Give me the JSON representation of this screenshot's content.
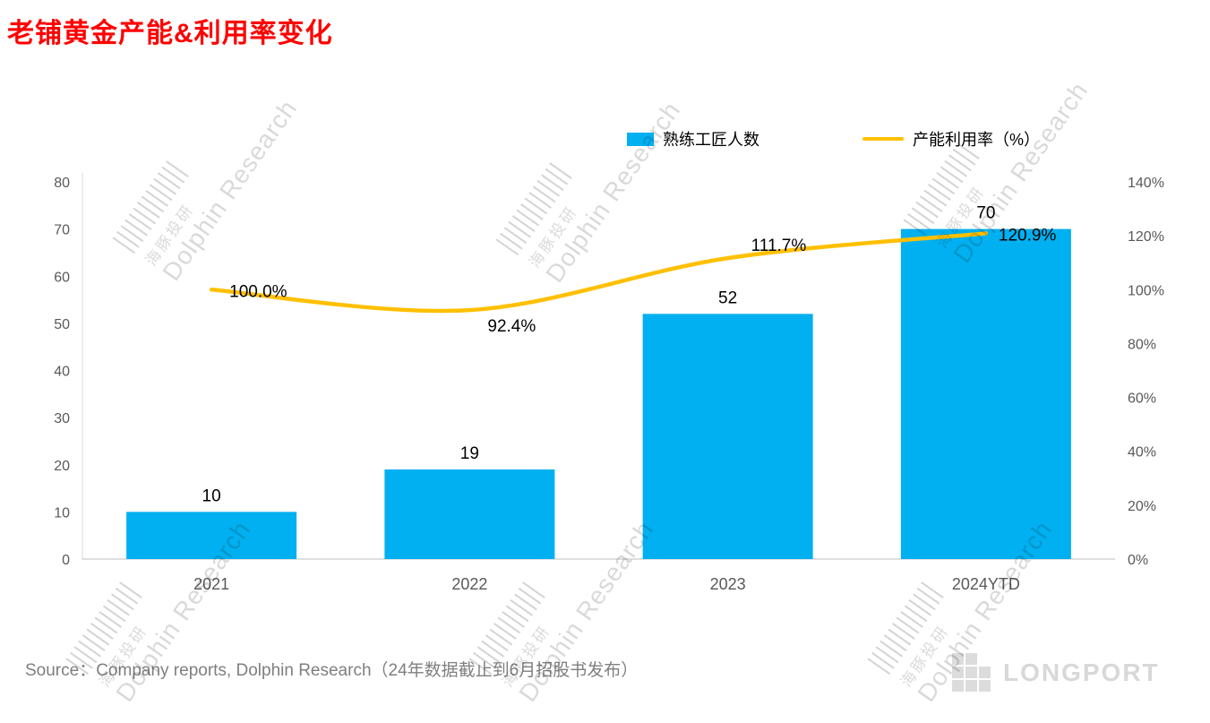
{
  "title": "老铺黄金产能&利用率变化",
  "legend": {
    "bars": "熟练工匠人数",
    "line": "产能利用率（%）"
  },
  "source": "Source：Company reports, Dolphin Research（24年数据截止到6月招股书发布）",
  "watermark": {
    "cn": "海豚投研",
    "en": "Dolphin Research"
  },
  "logo": "LONGPORT",
  "colors": {
    "bar": "#00B0F0",
    "line": "#FFC000",
    "title": "#FF0000",
    "axis_text": "#595959",
    "data_label": "#000000",
    "axis_line": "#BFBFBF"
  },
  "chart_data": {
    "type": "bar",
    "subtype": "bar+line combo, secondary right axis",
    "title": "老铺黄金产能&利用率变化",
    "categories": [
      "2021",
      "2022",
      "2023",
      "2024YTD"
    ],
    "series": [
      {
        "name": "熟练工匠人数",
        "type": "bar",
        "axis": "left",
        "values": [
          10,
          19,
          52,
          70
        ],
        "labels": [
          "10",
          "19",
          "52",
          "70"
        ]
      },
      {
        "name": "产能利用率（%）",
        "type": "line",
        "axis": "right",
        "values": [
          100.0,
          92.4,
          111.7,
          120.9
        ],
        "labels": [
          "100.0%",
          "92.4%",
          "111.7%",
          "120.9%"
        ]
      }
    ],
    "left_axis": {
      "min": 0,
      "max": 80,
      "step": 10,
      "ticks": [
        "0",
        "10",
        "20",
        "30",
        "40",
        "50",
        "60",
        "70",
        "80"
      ]
    },
    "right_axis": {
      "min": 0,
      "max": 140,
      "step": 20,
      "ticks": [
        "0%",
        "20%",
        "40%",
        "60%",
        "80%",
        "100%",
        "120%",
        "140%"
      ]
    },
    "grid": false,
    "legend_position": "top"
  }
}
